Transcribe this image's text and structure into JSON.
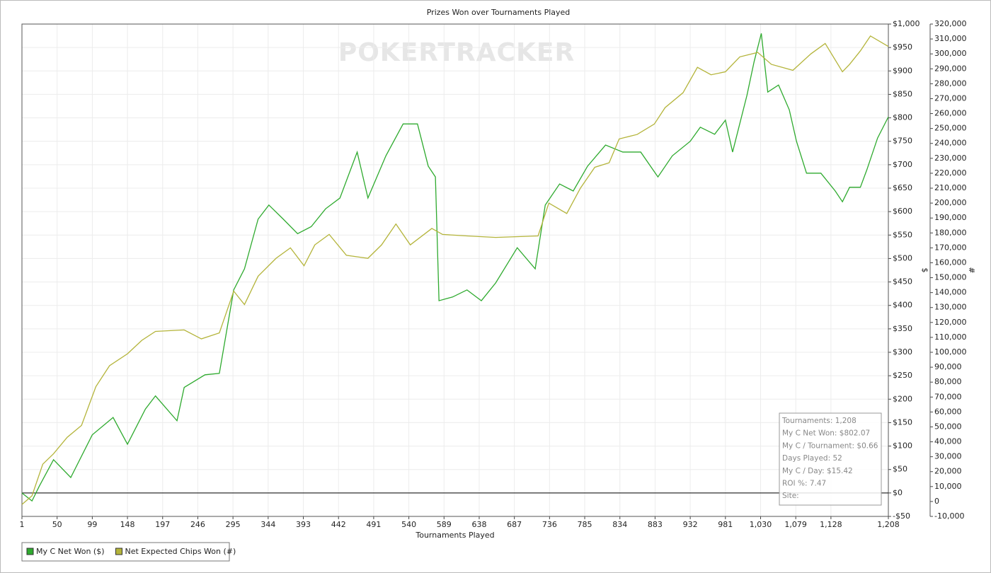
{
  "chart_data": {
    "type": "line",
    "title": "Prizes Won over Tournaments Played",
    "watermark": "POKERTRACKER",
    "x_label": "Tournaments Played",
    "y_label": "$",
    "y2_label": "#",
    "grid": true,
    "xlim": [
      1,
      1208
    ],
    "xticks": [
      1,
      50,
      99,
      148,
      197,
      246,
      295,
      344,
      393,
      442,
      491,
      540,
      589,
      638,
      687,
      736,
      785,
      834,
      883,
      932,
      981,
      {
        "value": 1030,
        "label": "1,030"
      },
      {
        "value": 1079,
        "label": "1,079"
      },
      {
        "value": 1128,
        "label": "1,128"
      },
      {
        "value": 1208,
        "label": "1,208"
      }
    ],
    "ylim": [
      -50,
      1000
    ],
    "yticks": [
      {
        "value": -50,
        "label": "-$50"
      },
      {
        "value": 0,
        "label": "$0"
      },
      {
        "value": 50,
        "label": "$50"
      },
      {
        "value": 100,
        "label": "$100"
      },
      {
        "value": 150,
        "label": "$150"
      },
      {
        "value": 200,
        "label": "$200"
      },
      {
        "value": 250,
        "label": "$250"
      },
      {
        "value": 300,
        "label": "$300"
      },
      {
        "value": 350,
        "label": "$350"
      },
      {
        "value": 400,
        "label": "$400"
      },
      {
        "value": 450,
        "label": "$450"
      },
      {
        "value": 500,
        "label": "$500"
      },
      {
        "value": 550,
        "label": "$550"
      },
      {
        "value": 600,
        "label": "$600"
      },
      {
        "value": 650,
        "label": "$650"
      },
      {
        "value": 700,
        "label": "$700"
      },
      {
        "value": 750,
        "label": "$750"
      },
      {
        "value": 800,
        "label": "$800"
      },
      {
        "value": 850,
        "label": "$850"
      },
      {
        "value": 900,
        "label": "$900"
      },
      {
        "value": 950,
        "label": "$950"
      },
      {
        "value": 1000,
        "label": "$1,000"
      }
    ],
    "y2lim": [
      -10000,
      320000
    ],
    "y2ticks": [
      {
        "value": -10000,
        "label": "-10,000"
      },
      0,
      {
        "value": 10000,
        "label": "10,000"
      },
      {
        "value": 20000,
        "label": "20,000"
      },
      {
        "value": 30000,
        "label": "30,000"
      },
      {
        "value": 40000,
        "label": "40,000"
      },
      {
        "value": 50000,
        "label": "50,000"
      },
      {
        "value": 60000,
        "label": "60,000"
      },
      {
        "value": 70000,
        "label": "70,000"
      },
      {
        "value": 80000,
        "label": "80,000"
      },
      {
        "value": 90000,
        "label": "90,000"
      },
      {
        "value": 100000,
        "label": "100,000"
      },
      {
        "value": 110000,
        "label": "110,000"
      },
      {
        "value": 120000,
        "label": "120,000"
      },
      {
        "value": 130000,
        "label": "130,000"
      },
      {
        "value": 140000,
        "label": "140,000"
      },
      {
        "value": 150000,
        "label": "150,000"
      },
      {
        "value": 160000,
        "label": "160,000"
      },
      {
        "value": 170000,
        "label": "170,000"
      },
      {
        "value": 180000,
        "label": "180,000"
      },
      {
        "value": 190000,
        "label": "190,000"
      },
      {
        "value": 200000,
        "label": "200,000"
      },
      {
        "value": 210000,
        "label": "210,000"
      },
      {
        "value": 220000,
        "label": "220,000"
      },
      {
        "value": 230000,
        "label": "230,000"
      },
      {
        "value": 240000,
        "label": "240,000"
      },
      {
        "value": 250000,
        "label": "250,000"
      },
      {
        "value": 260000,
        "label": "260,000"
      },
      {
        "value": 270000,
        "label": "270,000"
      },
      {
        "value": 280000,
        "label": "280,000"
      },
      {
        "value": 290000,
        "label": "290,000"
      },
      {
        "value": 300000,
        "label": "300,000"
      },
      {
        "value": 310000,
        "label": "310,000"
      },
      {
        "value": 320000,
        "label": "320,000"
      }
    ],
    "series": [
      {
        "name": "My C Net Won ($)",
        "color": "#2eaa2e",
        "axis": "y",
        "x": [
          1,
          15,
          25,
          45,
          69,
          99,
          128,
          148,
          173,
          187,
          217,
          227,
          256,
          276,
          296,
          311,
          330,
          345,
          365,
          385,
          404,
          424,
          444,
          468,
          483,
          508,
          532,
          552,
          567,
          577,
          582,
          601,
          621,
          641,
          661,
          691,
          716,
          730,
          750,
          769,
          789,
          814,
          838,
          863,
          887,
          907,
          932,
          946,
          966,
          981,
          991,
          1011,
          1021,
          1031,
          1040,
          1055,
          1070,
          1080,
          1094,
          1114,
          1134,
          1144,
          1154,
          1169,
          1178,
          1193,
          1208
        ],
        "values": [
          0,
          -17,
          14,
          71,
          33,
          124,
          161,
          104,
          179,
          207,
          154,
          225,
          252,
          255,
          433,
          478,
          584,
          614,
          584,
          553,
          568,
          606,
          629,
          727,
          629,
          719,
          787,
          787,
          697,
          674,
          410,
          418,
          433,
          410,
          448,
          523,
          478,
          614,
          659,
          644,
          697,
          742,
          727,
          727,
          674,
          719,
          750,
          780,
          765,
          795,
          727,
          848,
          920,
          980,
          855,
          870,
          817,
          750,
          682,
          682,
          644,
          621,
          652,
          652,
          689,
          757,
          802
        ]
      },
      {
        "name": "Net Expected Chips Won (#)",
        "color": "#b4b43a",
        "axis": "y2",
        "x": [
          1,
          15,
          30,
          45,
          64,
          84,
          104,
          123,
          148,
          168,
          187,
          227,
          251,
          276,
          296,
          311,
          330,
          355,
          375,
          394,
          409,
          429,
          453,
          483,
          502,
          522,
          542,
          572,
          587,
          621,
          661,
          720,
          735,
          760,
          779,
          799,
          819,
          833,
          858,
          882,
          897,
          922,
          942,
          961,
          981,
          1001,
          1026,
          1045,
          1075,
          1100,
          1120,
          1144,
          1154,
          1169,
          1183,
          1208
        ],
        "values": [
          -2000,
          3800,
          25000,
          32000,
          43000,
          51000,
          77000,
          91000,
          99000,
          108000,
          114000,
          115000,
          109000,
          113000,
          141000,
          132000,
          151000,
          163000,
          170000,
          158000,
          172000,
          179000,
          165000,
          163000,
          172000,
          186000,
          172000,
          183000,
          179000,
          178000,
          177000,
          178000,
          200000,
          193000,
          210000,
          224000,
          227000,
          243000,
          246000,
          253000,
          264000,
          274000,
          291000,
          286000,
          288000,
          298000,
          301000,
          293000,
          289000,
          300000,
          307000,
          288000,
          293000,
          302000,
          312000,
          305000
        ]
      }
    ],
    "stats": [
      "Tournaments: 1,208",
      "My C Net Won: $802.07",
      "My C / Tournament: $0.66",
      "Days Played: 52",
      "My C / Day: $15.42",
      "ROI %: 7.47",
      "Site:"
    ]
  }
}
